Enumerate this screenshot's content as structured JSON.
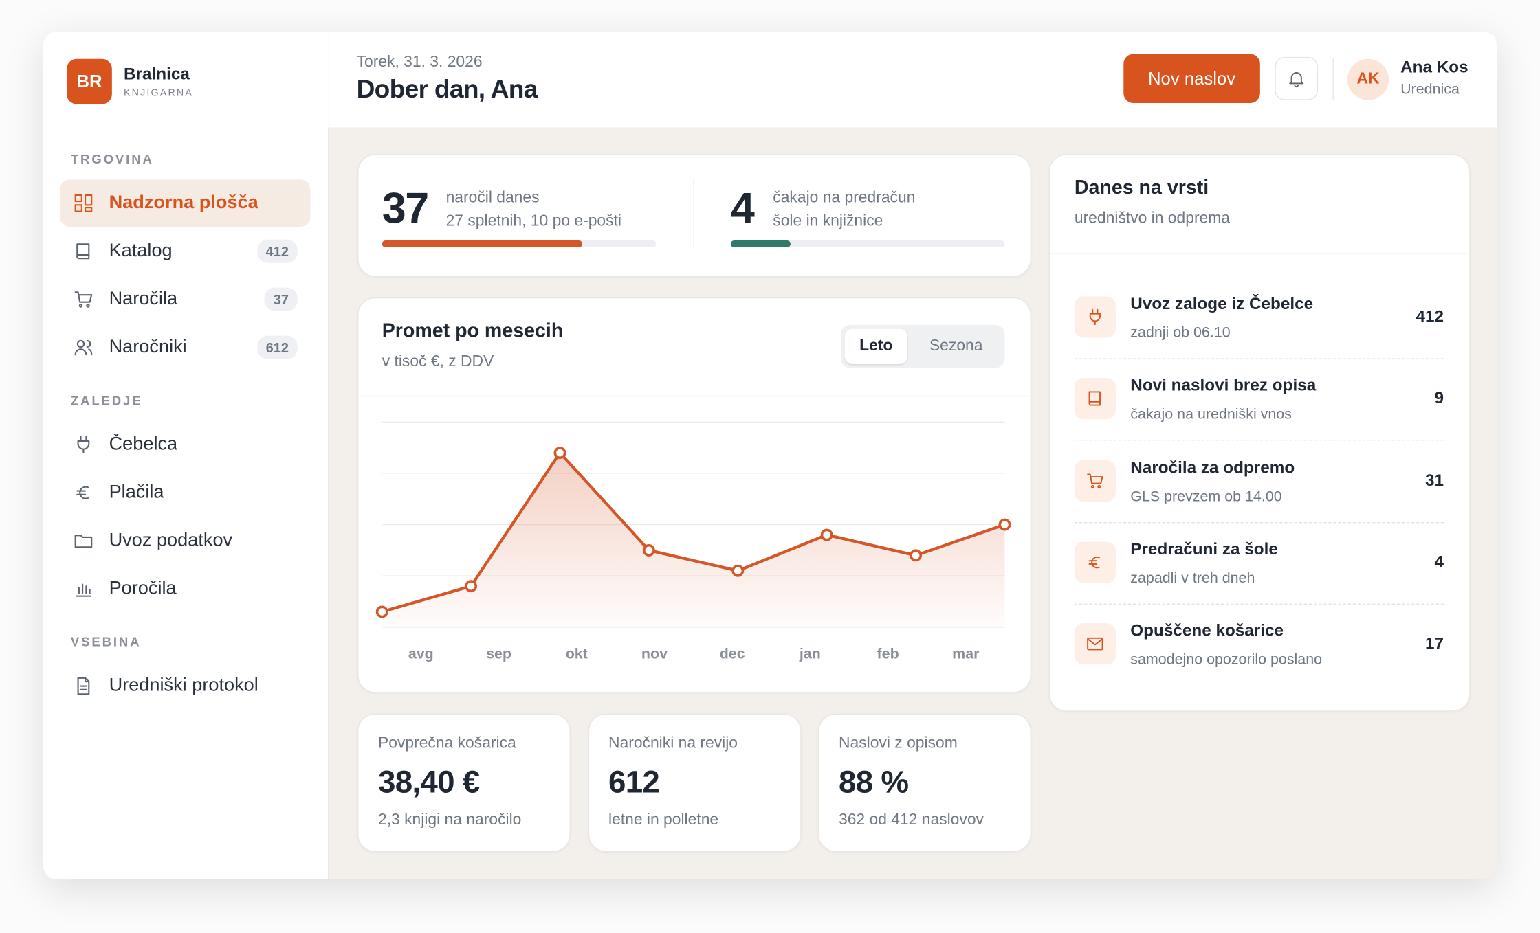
{
  "brand": {
    "initials": "BR",
    "name": "Bralnica",
    "tagline": "KNJIGARNA"
  },
  "nav": {
    "sections": [
      {
        "title": "TRGOVINA",
        "items": [
          {
            "label": "Nadzorna plošča",
            "active": true
          },
          {
            "label": "Katalog",
            "badge": 412
          },
          {
            "label": "Naročila",
            "badge": 37
          },
          {
            "label": "Naročniki",
            "badge": 612
          }
        ]
      },
      {
        "title": "ZALEDJE",
        "items": [
          {
            "label": "Čebelca"
          },
          {
            "label": "Plačila"
          },
          {
            "label": "Uvoz podatkov"
          },
          {
            "label": "Poročila"
          }
        ]
      },
      {
        "title": "VSEBINA",
        "items": [
          {
            "label": "Uredniški protokol"
          }
        ]
      }
    ]
  },
  "header": {
    "date": "Torek, 31. 3. 2026",
    "greeting": "Dober dan, Ana",
    "button": "Nov naslov",
    "user": {
      "initials": "AK",
      "name": "Ana Kos",
      "role": "Urednica"
    }
  },
  "summary": [
    {
      "value": 37,
      "line1": "naročil danes",
      "line2": "27 spletnih, 10 po e-pošti",
      "progress": 73,
      "color": "#d4572a"
    },
    {
      "value": 4,
      "line1": "čakajo na predračun",
      "line2": "šole in knjižnice",
      "progress": 22,
      "color": "#2f7a6a"
    }
  ],
  "chart_data": {
    "type": "line",
    "title": "Promet po mesecih",
    "subtitle": "v tisoč €, z DDV",
    "toggle": [
      "Leto",
      "Sezona"
    ],
    "categories": [
      "avg",
      "sep",
      "okt",
      "nov",
      "dec",
      "jan",
      "feb",
      "mar"
    ],
    "values": [
      3,
      8,
      34,
      15,
      11,
      18,
      14,
      20
    ],
    "color": "#d4572a",
    "ylim": [
      0,
      40
    ],
    "grid": true
  },
  "kpis": [
    {
      "label": "Povprečna košarica",
      "value": "38,40 €",
      "note": "2,3 knjigi na naročilo"
    },
    {
      "label": "Naročniki na revijo",
      "value": "612",
      "note": "letne in polletne"
    },
    {
      "label": "Naslovi z opisom",
      "value": "88 %",
      "note": "362 od 412 naslovov"
    }
  ],
  "queue": {
    "title": "Danes na vrsti",
    "subtitle": "uredništvo in odprema",
    "items": [
      {
        "title": "Uvoz zaloge iz Čebelce",
        "note": "zadnji ob 06.10",
        "count": 412
      },
      {
        "title": "Novi naslovi brez opisa",
        "note": "čakajo na uredniški vnos",
        "count": 9
      },
      {
        "title": "Naročila za odpremo",
        "note": "GLS prevzem ob 14.00",
        "count": 31
      },
      {
        "title": "Predračuni za šole",
        "note": "zapadli v treh dneh",
        "count": 4
      },
      {
        "title": "Opuščene košarice",
        "note": "samodejno opozorilo poslano",
        "count": 17
      }
    ]
  }
}
